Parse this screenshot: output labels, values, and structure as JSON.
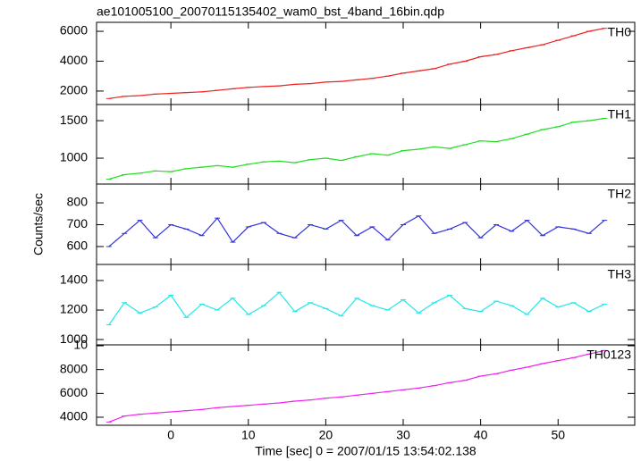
{
  "title": "ae101005100_20070115135402_wam0_bst_4band_16bin.qdp",
  "xlabel": "Time [sec] 0 = 2007/01/15 13:54:02.138",
  "ylabel": "Counts/sec",
  "xlim": [
    -9.6,
    59.9
  ],
  "xticks": [
    0,
    10,
    20,
    30,
    40,
    50
  ],
  "chart_data": [
    {
      "type": "line",
      "label": "TH0",
      "color": "#ee2222",
      "x": [
        -8,
        -6,
        -4,
        -2,
        0,
        2,
        4,
        6,
        8,
        10,
        12,
        14,
        16,
        18,
        20,
        22,
        24,
        26,
        28,
        30,
        32,
        34,
        36,
        38,
        40,
        42,
        44,
        46,
        48,
        50,
        52,
        54,
        56
      ],
      "values": [
        1500,
        1650,
        1700,
        1800,
        1850,
        1900,
        1950,
        2050,
        2150,
        2250,
        2300,
        2350,
        2450,
        2500,
        2600,
        2650,
        2750,
        2850,
        3000,
        3200,
        3350,
        3500,
        3800,
        4000,
        4300,
        4450,
        4700,
        4900,
        5100,
        5400,
        5700,
        6000,
        6200
      ],
      "ylim": [
        1100,
        6600
      ],
      "yticks": [
        2000,
        4000,
        6000
      ]
    },
    {
      "type": "line",
      "label": "TH1",
      "color": "#22dd22",
      "x": [
        -8,
        -6,
        -4,
        -2,
        0,
        2,
        4,
        6,
        8,
        10,
        12,
        14,
        16,
        18,
        20,
        22,
        24,
        26,
        28,
        30,
        32,
        34,
        36,
        38,
        40,
        42,
        44,
        46,
        48,
        50,
        52,
        54,
        56
      ],
      "values": [
        720,
        780,
        800,
        830,
        820,
        860,
        880,
        900,
        880,
        920,
        950,
        960,
        940,
        980,
        1000,
        970,
        1020,
        1060,
        1040,
        1100,
        1120,
        1150,
        1130,
        1180,
        1230,
        1220,
        1260,
        1320,
        1380,
        1420,
        1480,
        1500,
        1530
      ],
      "ylim": [
        655,
        1715
      ],
      "yticks": [
        1000,
        1500
      ]
    },
    {
      "type": "line",
      "label": "TH2",
      "color": "#3333dd",
      "x": [
        -8,
        -6,
        -4,
        -2,
        0,
        2,
        4,
        6,
        8,
        10,
        12,
        14,
        16,
        18,
        20,
        22,
        24,
        26,
        28,
        30,
        32,
        34,
        36,
        38,
        40,
        42,
        44,
        46,
        48,
        50,
        52,
        54,
        56
      ],
      "values": [
        600,
        660,
        720,
        640,
        700,
        680,
        650,
        730,
        620,
        690,
        710,
        660,
        640,
        700,
        680,
        720,
        650,
        690,
        630,
        700,
        740,
        660,
        680,
        710,
        640,
        700,
        670,
        720,
        650,
        690,
        680,
        660,
        720
      ],
      "ylim": [
        518,
        886
      ],
      "yticks": [
        600,
        700,
        800
      ]
    },
    {
      "type": "line",
      "label": "TH3",
      "color": "#22e8e8",
      "x": [
        -8,
        -6,
        -4,
        -2,
        0,
        2,
        4,
        6,
        8,
        10,
        12,
        14,
        16,
        18,
        20,
        22,
        24,
        26,
        28,
        30,
        32,
        34,
        36,
        38,
        40,
        42,
        44,
        46,
        48,
        50,
        52,
        54,
        56
      ],
      "values": [
        1100,
        1250,
        1180,
        1220,
        1300,
        1150,
        1240,
        1200,
        1280,
        1170,
        1230,
        1320,
        1190,
        1250,
        1210,
        1160,
        1280,
        1230,
        1200,
        1270,
        1180,
        1250,
        1300,
        1210,
        1190,
        1260,
        1230,
        1170,
        1280,
        1220,
        1250,
        1190,
        1240
      ],
      "ylim": [
        964,
        1509
      ],
      "yticks": [
        1000,
        1200,
        1400
      ]
    },
    {
      "type": "line",
      "label": "TH0123",
      "color": "#ee22ee",
      "x": [
        -8,
        -6,
        -4,
        -2,
        0,
        2,
        4,
        6,
        8,
        10,
        12,
        14,
        16,
        18,
        20,
        22,
        24,
        26,
        28,
        30,
        32,
        34,
        36,
        38,
        40,
        42,
        44,
        46,
        48,
        50,
        52,
        54,
        56
      ],
      "values": [
        3600,
        4100,
        4250,
        4350,
        4450,
        4550,
        4650,
        4800,
        4900,
        5000,
        5100,
        5200,
        5350,
        5450,
        5600,
        5700,
        5850,
        6000,
        6150,
        6300,
        6450,
        6650,
        6900,
        7100,
        7450,
        7650,
        7950,
        8200,
        8500,
        8750,
        9000,
        9300,
        9600
      ],
      "ylim": [
        3326,
        10075
      ],
      "yticks": [
        4000,
        6000,
        8000,
        {
          "value": 10000,
          "label": "10"
        }
      ]
    }
  ]
}
